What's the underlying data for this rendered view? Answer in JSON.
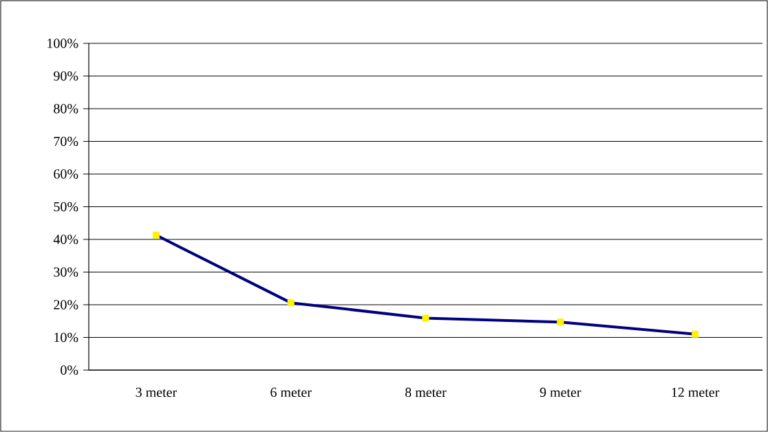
{
  "chart_data": {
    "type": "line",
    "categories": [
      "3 meter",
      "6 meter",
      "8 meter",
      "9 meter",
      "12 meter"
    ],
    "series": [
      {
        "color": "#000080",
        "values": [
          41.3,
          20.6,
          15.9,
          14.7,
          11.0
        ]
      }
    ],
    "ylim": [
      0,
      100
    ],
    "yticks": [
      {
        "value": 0,
        "label": "0%"
      },
      {
        "value": 10,
        "label": "10%"
      },
      {
        "value": 20,
        "label": "20%"
      },
      {
        "value": 30,
        "label": "30%"
      },
      {
        "value": 40,
        "label": "40%"
      },
      {
        "value": 50,
        "label": "50%"
      },
      {
        "value": 60,
        "label": "60%"
      },
      {
        "value": 70,
        "label": "70%"
      },
      {
        "value": 80,
        "label": "80%"
      },
      {
        "value": 90,
        "label": "90%"
      },
      {
        "value": 100,
        "label": "100%"
      }
    ],
    "grid": "y",
    "marker": "square",
    "line_style": "solid"
  }
}
